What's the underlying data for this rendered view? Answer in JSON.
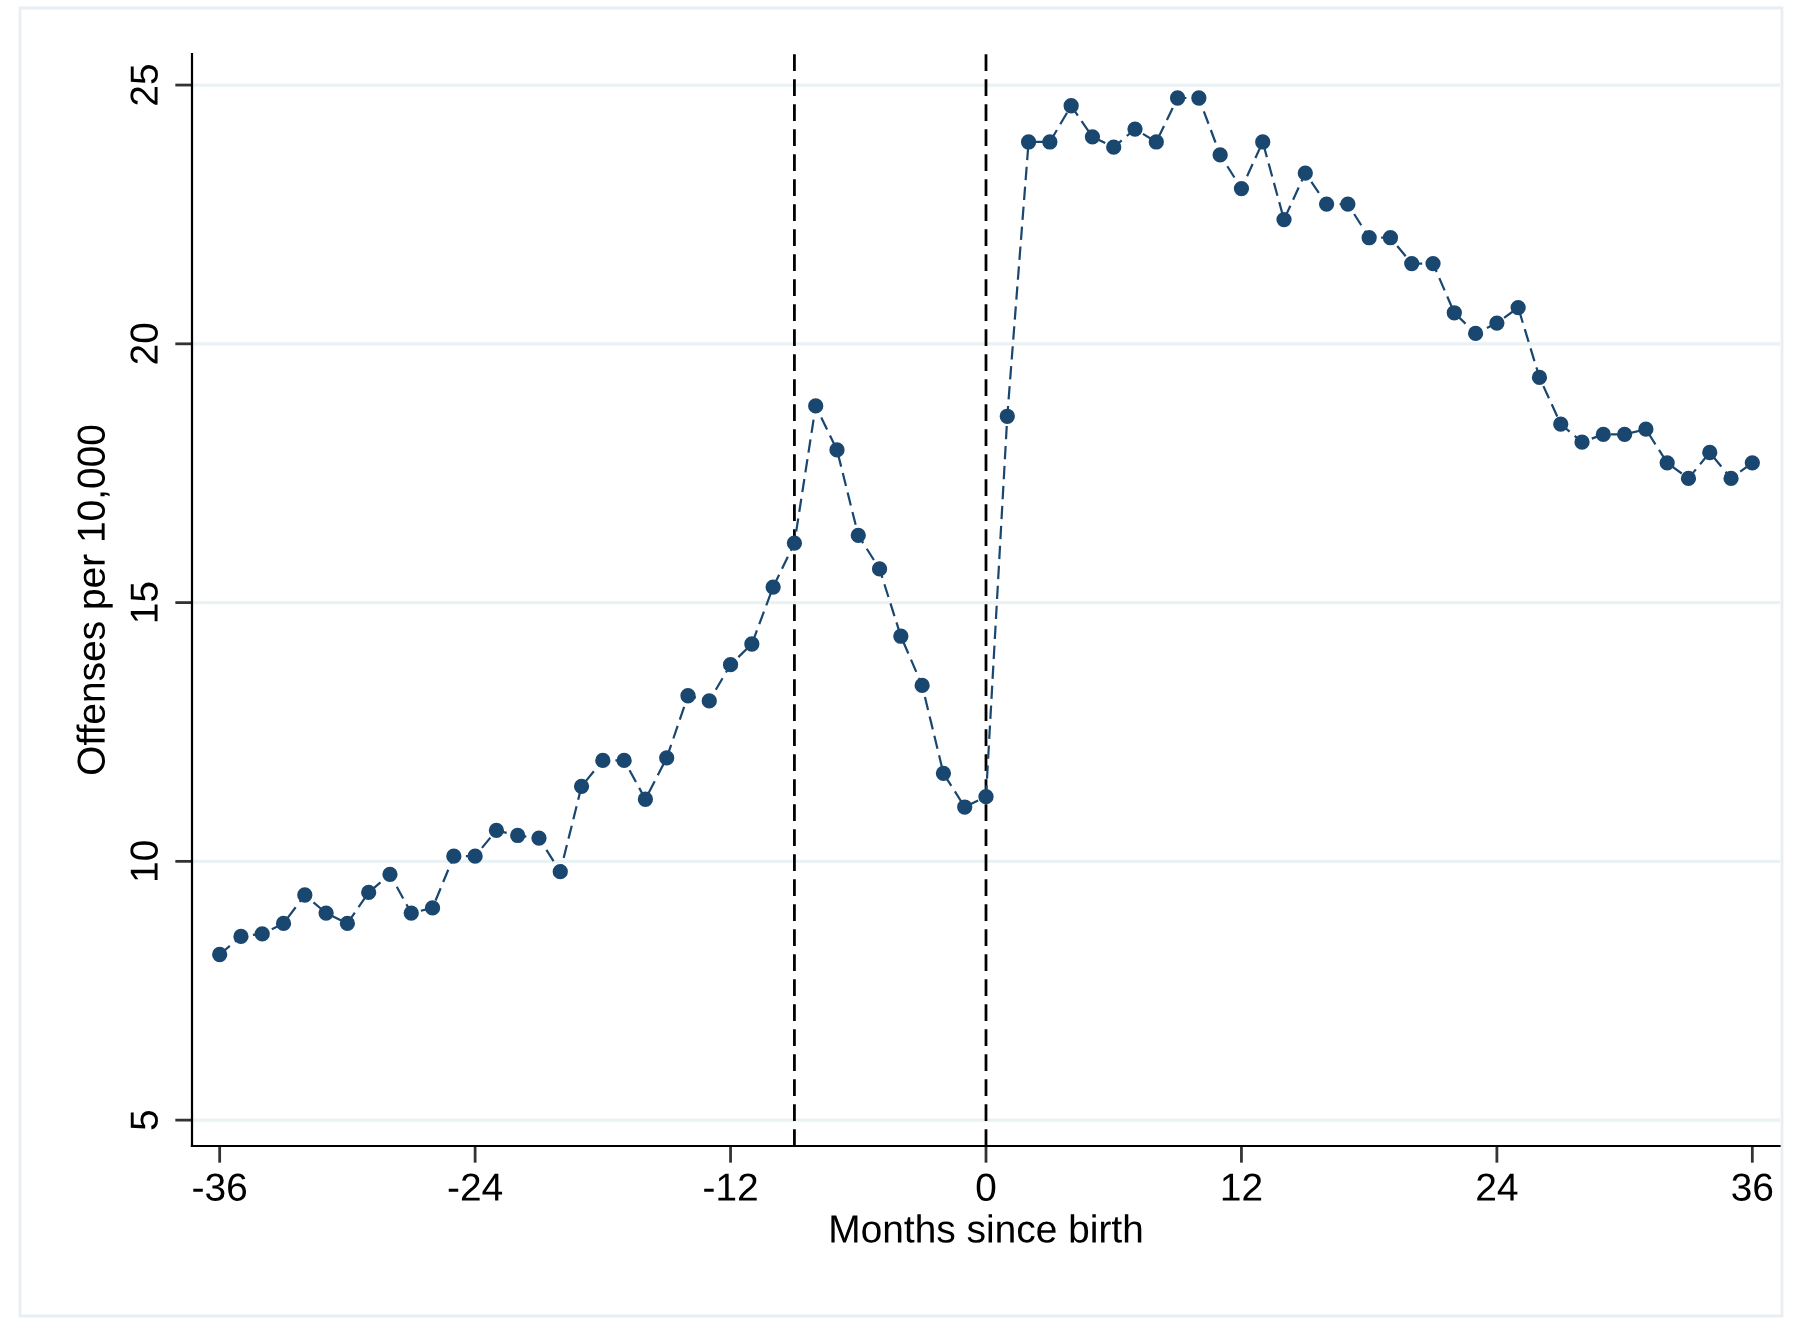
{
  "chart_data": {
    "type": "line",
    "xlabel": "Months since birth",
    "ylabel": "Offenses per 10,000",
    "x": [
      -36,
      -35,
      -34,
      -33,
      -32,
      -31,
      -30,
      -29,
      -28,
      -27,
      -26,
      -25,
      -24,
      -23,
      -22,
      -21,
      -20,
      -19,
      -18,
      -17,
      -16,
      -15,
      -14,
      -13,
      -12,
      -11,
      -10,
      -9,
      -8,
      -7,
      -6,
      -5,
      -4,
      -3,
      -2,
      -1,
      0,
      1,
      2,
      3,
      4,
      5,
      6,
      7,
      8,
      9,
      10,
      11,
      12,
      13,
      14,
      15,
      16,
      17,
      18,
      19,
      20,
      21,
      22,
      23,
      24,
      25,
      26,
      27,
      28,
      29,
      30,
      31,
      32,
      33,
      34,
      35,
      36
    ],
    "series": [
      {
        "color": "#1a476f",
        "values": [
          8.2,
          8.55,
          8.6,
          8.8,
          9.35,
          9.0,
          8.8,
          9.4,
          9.75,
          9.0,
          9.1,
          10.1,
          10.1,
          10.6,
          10.5,
          10.45,
          9.8,
          11.45,
          11.95,
          11.95,
          11.2,
          12.0,
          13.2,
          13.1,
          13.8,
          14.2,
          15.3,
          16.15,
          18.8,
          17.95,
          16.3,
          15.65,
          14.35,
          13.4,
          11.7,
          11.05,
          11.25,
          18.6,
          23.9,
          23.9,
          24.6,
          24.0,
          23.8,
          24.15,
          23.9,
          24.75,
          24.75,
          23.65,
          23.0,
          23.9,
          22.4,
          23.3,
          22.7,
          22.7,
          22.05,
          22.05,
          21.55,
          21.55,
          20.6,
          20.2,
          20.4,
          20.7,
          19.35,
          18.45,
          18.1,
          18.25,
          18.25,
          18.35,
          17.7,
          17.4,
          17.9,
          17.4,
          17.7
        ]
      }
    ],
    "xlim": [
      -37.3,
      37.3
    ],
    "ylim": [
      4.5,
      25.6
    ],
    "xticks": [
      -36,
      -24,
      -12,
      0,
      12,
      24,
      36
    ],
    "yticks": [
      5,
      10,
      15,
      20,
      25
    ],
    "ref_lines": [
      {
        "axis": "x",
        "value": -9,
        "color": "#000000",
        "line_style": "dashed"
      },
      {
        "axis": "x",
        "value": 0,
        "color": "#000000",
        "line_style": "dashed"
      }
    ],
    "grid": "y",
    "marker": "circle",
    "line_style": "dashed"
  }
}
